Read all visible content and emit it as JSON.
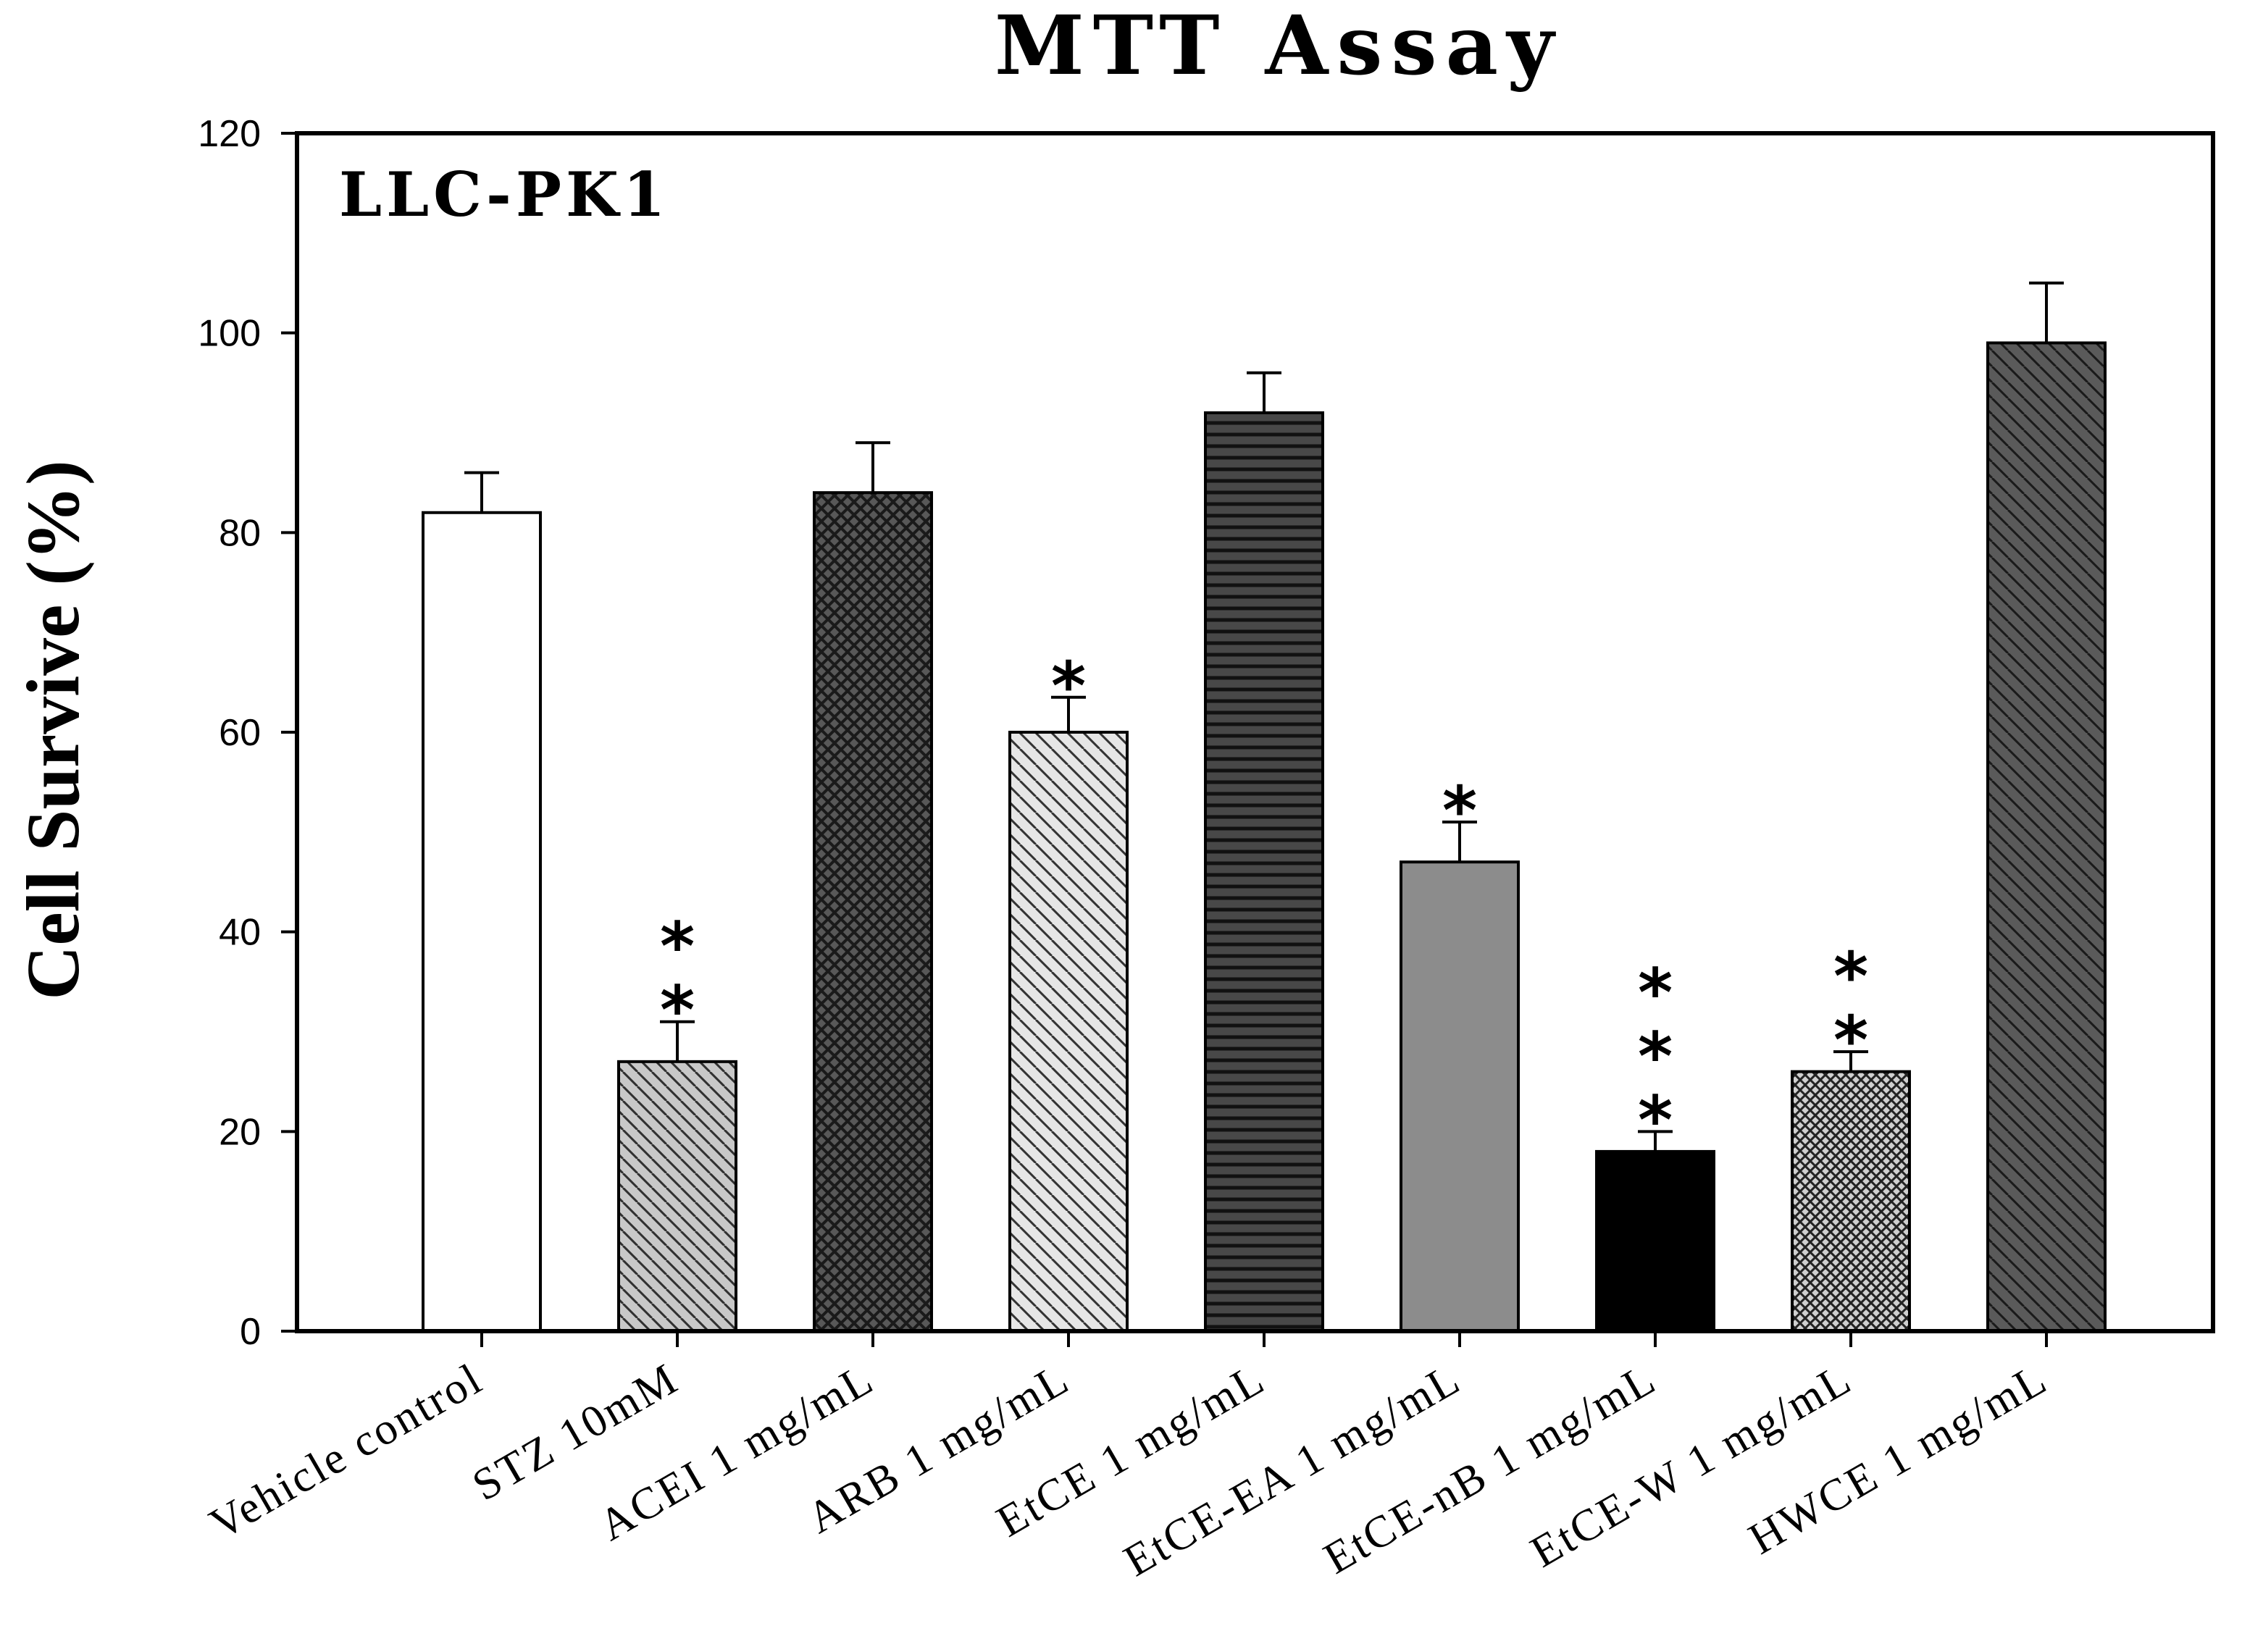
{
  "chart_data": {
    "type": "bar",
    "title": "MTT Assay",
    "panel_label": "LLC-PK1",
    "xlabel": "",
    "ylabel": "Cell Survive (%)",
    "ylim": [
      0,
      120
    ],
    "yticks": [
      0,
      20,
      40,
      60,
      80,
      100,
      120
    ],
    "grid": false,
    "categories": [
      "Vehicle control",
      "STZ 10mM",
      "ACEI 1 mg/mL",
      "ARB 1 mg/mL",
      "EtCE 1 mg/mL",
      "EtCE-EA 1 mg/mL",
      "EtCE-nB 1 mg/mL",
      "EtCE-W 1 mg/mL",
      "HWCE 1 mg/mL"
    ],
    "values": [
      82,
      27,
      84,
      60,
      92,
      47,
      18,
      26,
      99
    ],
    "errors": [
      4,
      4,
      5,
      3.5,
      4,
      4,
      2,
      2,
      6
    ],
    "significance": [
      "",
      "**",
      "",
      "*",
      "",
      "*",
      "***",
      "**",
      ""
    ],
    "bar_styles": [
      {
        "fill": "#ffffff",
        "pattern": "none",
        "line_color": "#000000"
      },
      {
        "fill": "#c8c8c8",
        "pattern": "diag-right-dense",
        "line_color": "#303030"
      },
      {
        "fill": "#585858",
        "pattern": "crosshatch",
        "line_color": "#1a1a1a"
      },
      {
        "fill": "#e6e6e6",
        "pattern": "diag-left",
        "line_color": "#333333"
      },
      {
        "fill": "#484848",
        "pattern": "horizontal",
        "line_color": "#111111"
      },
      {
        "fill": "#8c8c8c",
        "pattern": "none",
        "line_color": "#000000"
      },
      {
        "fill": "#000000",
        "pattern": "none",
        "line_color": "#000000"
      },
      {
        "fill": "#cfcfcf",
        "pattern": "crosshatch-fine",
        "line_color": "#222222"
      },
      {
        "fill": "#5a5a5a",
        "pattern": "diag-left",
        "line_color": "#1a1a1a"
      }
    ]
  }
}
